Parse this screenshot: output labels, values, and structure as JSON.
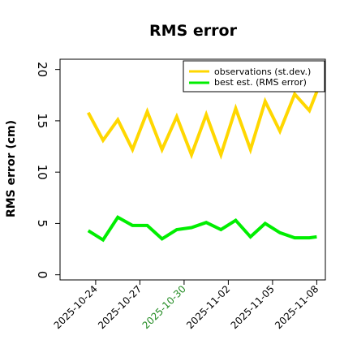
{
  "chart_data": {
    "type": "line",
    "title": "RMS error",
    "xlabel": "",
    "ylabel": "RMS error (cm)",
    "ylim": [
      -0.5,
      21
    ],
    "yticks": [
      0,
      5,
      10,
      15,
      20
    ],
    "xlim": [
      "2025-10-21T14:00",
      "2025-11-08T14:00"
    ],
    "xticks": [
      {
        "date": "2025-10-24",
        "label": "2025-10-24",
        "color": "#000000"
      },
      {
        "date": "2025-10-27",
        "label": "2025-10-27",
        "color": "#000000"
      },
      {
        "date": "2025-10-30",
        "label": "2025-10-30",
        "color": "#228B22"
      },
      {
        "date": "2025-11-02",
        "label": "2025-11-02",
        "color": "#000000"
      },
      {
        "date": "2025-11-05",
        "label": "2025-11-05",
        "color": "#000000"
      },
      {
        "date": "2025-11-08",
        "label": "2025-11-08",
        "color": "#000000"
      }
    ],
    "grid": false,
    "legend_position": "top-right",
    "series": [
      {
        "name": "observations (st.dev.)",
        "color": "#FFD700",
        "x": [
          "2025-10-23T12:00",
          "2025-10-24T12:00",
          "2025-10-25T12:00",
          "2025-10-26T12:00",
          "2025-10-27T12:00",
          "2025-10-28T12:00",
          "2025-10-29T12:00",
          "2025-10-30T12:00",
          "2025-10-31T12:00",
          "2025-11-01T12:00",
          "2025-11-02T12:00",
          "2025-11-03T12:00",
          "2025-11-04T12:00",
          "2025-11-05T12:00",
          "2025-11-06T12:00",
          "2025-11-07T12:00",
          "2025-11-08T03:00"
        ],
        "values": [
          15.8,
          13.1,
          15.1,
          12.2,
          15.9,
          12.2,
          15.4,
          11.7,
          15.6,
          11.7,
          16.2,
          12.2,
          16.9,
          14.0,
          17.6,
          16.0,
          18.3
        ]
      },
      {
        "name": "best est. (RMS error)",
        "color": "#00EE00",
        "x": [
          "2025-10-23T12:00",
          "2025-10-24T12:00",
          "2025-10-25T12:00",
          "2025-10-26T12:00",
          "2025-10-27T12:00",
          "2025-10-28T12:00",
          "2025-10-29T12:00",
          "2025-10-30T12:00",
          "2025-10-31T12:00",
          "2025-11-01T12:00",
          "2025-11-02T12:00",
          "2025-11-03T12:00",
          "2025-11-04T12:00",
          "2025-11-05T12:00",
          "2025-11-06T12:00",
          "2025-11-07T12:00",
          "2025-11-08T00:00"
        ],
        "values": [
          4.3,
          3.4,
          5.6,
          4.8,
          4.8,
          3.5,
          4.4,
          4.6,
          5.1,
          4.4,
          5.3,
          3.7,
          5.0,
          4.1,
          3.6,
          3.6,
          3.7
        ]
      }
    ]
  }
}
